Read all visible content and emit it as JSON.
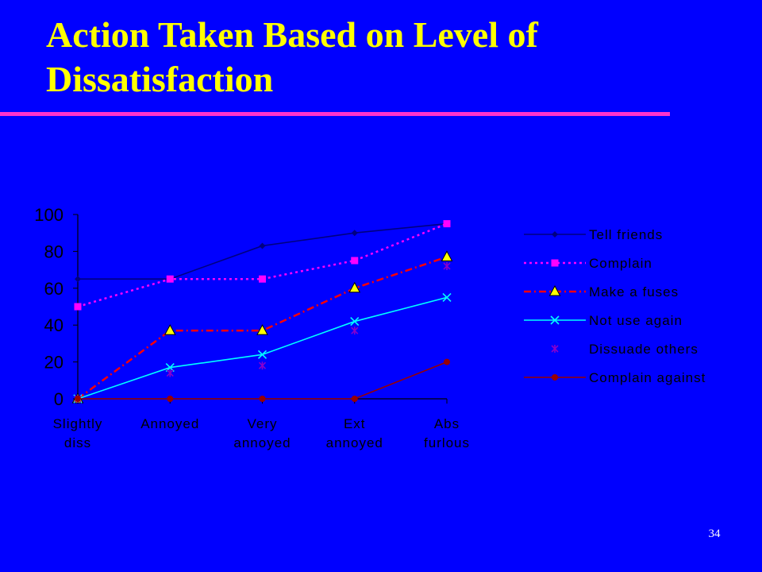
{
  "slide": {
    "title": "Action Taken Based on Level of Dissatisfaction",
    "page_number": "34"
  },
  "colors": {
    "background": "#0000FF",
    "title": "#FFFF00",
    "rule": "#FF33CC",
    "text": "#000000"
  },
  "chart_data": {
    "type": "line",
    "categories": [
      [
        "Slightly",
        "diss"
      ],
      [
        "Annoyed"
      ],
      [
        "Very",
        "annoyed"
      ],
      [
        "Ext",
        "annoyed"
      ],
      [
        "Abs",
        "furlous"
      ]
    ],
    "ylim": [
      0,
      100
    ],
    "yticks": [
      0,
      20,
      40,
      60,
      80,
      100
    ],
    "legend_position": "right",
    "series": [
      {
        "name": "Tell friends",
        "values": [
          65,
          65,
          83,
          90,
          95
        ],
        "color": "#000080",
        "dash": "",
        "marker": "diamond",
        "markerColor": "#000080"
      },
      {
        "name": "Complain",
        "values": [
          50,
          65,
          65,
          75,
          95
        ],
        "color": "#FF00FF",
        "dash": "3,4",
        "marker": "square",
        "markerColor": "#FF00FF"
      },
      {
        "name": "Make a fuses",
        "values": [
          0,
          37,
          37,
          60,
          77
        ],
        "color": "#FF0000",
        "dash": "9,4,2,4",
        "marker": "triangle",
        "markerColor": "#FFFF00"
      },
      {
        "name": "Not use again",
        "values": [
          0,
          17,
          24,
          42,
          55
        ],
        "color": "#00FFFF",
        "dash": "",
        "marker": "x",
        "markerColor": "#00FFFF"
      },
      {
        "name": "Dissuade others",
        "values": [
          0,
          14,
          18,
          37,
          72
        ],
        "color": "none",
        "dash": "",
        "marker": "star",
        "markerColor": "#8800CC"
      },
      {
        "name": "Complain against",
        "values": [
          0,
          0,
          0,
          0,
          20
        ],
        "color": "#990000",
        "dash": "",
        "marker": "circle",
        "markerColor": "#990000"
      }
    ]
  }
}
